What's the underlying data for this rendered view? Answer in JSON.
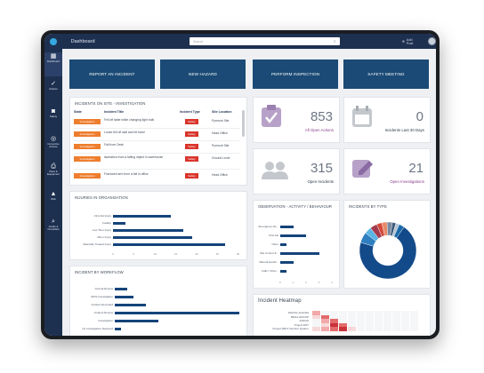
{
  "topbar": {
    "app_title": "Dashboard",
    "search_placeholder": "Search",
    "add_post": "Add Post"
  },
  "sidebar": {
    "items": [
      {
        "label": "Dashboard",
        "icon": "dashboard-icon",
        "glyph": "▦"
      },
      {
        "label": "Actions",
        "icon": "check-icon",
        "glyph": "✓"
      },
      {
        "label": "Safety",
        "icon": "camera-icon",
        "glyph": "◙"
      },
      {
        "label": "Corrective Actions",
        "icon": "target-icon",
        "glyph": "◎"
      },
      {
        "label": "Plant & Equipment",
        "icon": "printer-icon",
        "glyph": "⎙"
      },
      {
        "label": "Risk",
        "icon": "warning-icon",
        "glyph": "▲"
      },
      {
        "label": "Audits & Checklists",
        "icon": "search-icon",
        "glyph": "⌕"
      }
    ]
  },
  "actions": [
    "REPORT AN INCIDENT",
    "NEW HAZARD",
    "PERFORM INSPECTION",
    "SAFETY MEETING"
  ],
  "incidents": {
    "title": "INCIDENTS ON SITE - INVESTIGATION",
    "headers": [
      "State",
      "Incident Title",
      "Incident Type",
      "Site Location"
    ],
    "rows": [
      {
        "state": "Investigation",
        "title": "Fell off table while changing light bulb",
        "type": "Safety",
        "loc": "Pyrmont Site"
      },
      {
        "state": "Investigation",
        "title": "Loose fell off wall and hit hand",
        "type": "Safety",
        "loc": "Head Office"
      },
      {
        "state": "Investigation",
        "title": "Fall from Desk",
        "type": "Safety",
        "loc": "Pyrmont Site"
      },
      {
        "state": "Investigation",
        "title": "laceration from a falling object in warehouse",
        "type": "Safety",
        "loc": "Ground Level"
      },
      {
        "state": "Investigation",
        "title": "Fractured arm from a fall in office",
        "type": "Safety",
        "loc": "Head Office"
      }
    ]
  },
  "stats": [
    {
      "value": "853",
      "label": "All Open Actions",
      "color": "#8a3d8c",
      "icon": "clipboard-check-icon"
    },
    {
      "value": "0",
      "label": "Incidents Last 30 Days",
      "color": "#2d3a48",
      "icon": "calendar-icon"
    },
    {
      "value": "315",
      "label": "Open Incidents",
      "color": "#2d3a48",
      "icon": "users-icon"
    },
    {
      "value": "21",
      "label": "Open Investigations",
      "color": "#8a3d8c",
      "icon": "edit-icon"
    }
  ],
  "injuries": {
    "title": "INJURIES IN ORGANISATION",
    "categories": [
      "First Aid Injury",
      "Fatality",
      "Lost Time Injury",
      "Minor Injury",
      "Medically Treated Injury"
    ],
    "ticks": [
      "0",
      "5",
      "10",
      "15",
      "20",
      "25",
      "30"
    ]
  },
  "observation": {
    "title": "OBSERVATION - ACTIVITY / BEHAVIOUR",
    "categories": [
      "Emergency Re...",
      "First Aid",
      "Other",
      "Site Control &...",
      "Manual Handli...",
      "Falls / Other..."
    ],
    "ticks": [
      "0",
      "1",
      "2",
      "3",
      "4"
    ]
  },
  "by_type": {
    "title": "INCIDENTS BY TYPE"
  },
  "workflow": {
    "title": "INCIDENT BY WORKFLOW",
    "categories": [
      "Journal Review",
      "IGNS Investigation",
      "Incident Recorded",
      "Incident Review",
      "Investigation",
      "No Investigation Required"
    ]
  },
  "heatmap": {
    "title": "Incident Heatmap",
    "rows": [
      "Website Australia",
      "BEGA GROUP",
      "ANDAH",
      "Project ENT",
      "Project ABCT Number Quarter"
    ]
  },
  "chart_data": [
    {
      "type": "bar",
      "title": "INJURIES IN ORGANISATION",
      "categories": [
        "First Aid Injury",
        "Fatality",
        "Lost Time Injury",
        "Minor Injury",
        "Medically Treated Injury"
      ],
      "values": [
        14,
        3,
        17,
        19,
        27
      ],
      "xlim": [
        0,
        30
      ]
    },
    {
      "type": "bar",
      "title": "OBSERVATION - ACTIVITY / BEHAVIOUR",
      "categories": [
        "Emergency Re...",
        "First Aid",
        "Other",
        "Site Control &...",
        "Manual Handli...",
        "Falls / Other..."
      ],
      "values": [
        1,
        2,
        0.5,
        3,
        1,
        0.5
      ],
      "xlim": [
        0,
        4
      ]
    },
    {
      "type": "bar",
      "title": "INCIDENT BY WORKFLOW",
      "categories": [
        "Journal Review",
        "IGNS Investigation",
        "Incident Recorded",
        "Incident Review",
        "Investigation",
        "No Investigation Required"
      ],
      "values": [
        2,
        3,
        5,
        20,
        7,
        1
      ],
      "xlim": [
        0,
        20
      ]
    },
    {
      "type": "pie",
      "title": "INCIDENTS BY TYPE",
      "values": [
        70,
        6,
        4,
        4,
        3,
        3,
        3,
        2,
        2,
        3
      ],
      "colors": [
        "#124a8a",
        "#2f7fc0",
        "#5ab4e4",
        "#a33b4f",
        "#d44a3a",
        "#e98a6a",
        "#7a8aa0",
        "#3c5a7a",
        "#b5c3d4",
        "#1b6aa8"
      ]
    }
  ]
}
